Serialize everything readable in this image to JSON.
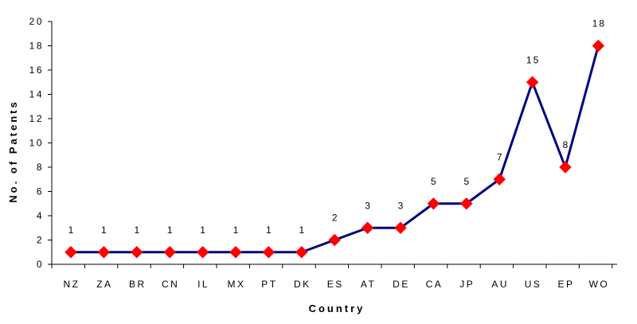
{
  "chart_data": {
    "type": "line",
    "categories": [
      "NZ",
      "ZA",
      "BR",
      "CN",
      "IL",
      "MX",
      "PT",
      "DK",
      "ES",
      "AT",
      "DE",
      "CA",
      "JP",
      "AU",
      "US",
      "EP",
      "WO"
    ],
    "values": [
      1,
      1,
      1,
      1,
      1,
      1,
      1,
      1,
      2,
      3,
      3,
      5,
      5,
      7,
      15,
      8,
      18
    ],
    "data_labels": [
      "1",
      "1",
      "1",
      "1",
      "1",
      "1",
      "1",
      "1",
      "2",
      "3",
      "3",
      "5",
      "5",
      "7",
      "15",
      "8",
      "18"
    ],
    "title": "",
    "xlabel": "Country",
    "ylabel": "No. of Patents",
    "ylim": [
      0,
      20
    ],
    "yticks": [
      "0",
      "2",
      "4",
      "6",
      "8",
      "10",
      "12",
      "14",
      "16",
      "18",
      "20"
    ],
    "grid": false,
    "legend": "none",
    "line_color": "#000080",
    "marker_color": "#ff0000",
    "marker": "diamond"
  }
}
